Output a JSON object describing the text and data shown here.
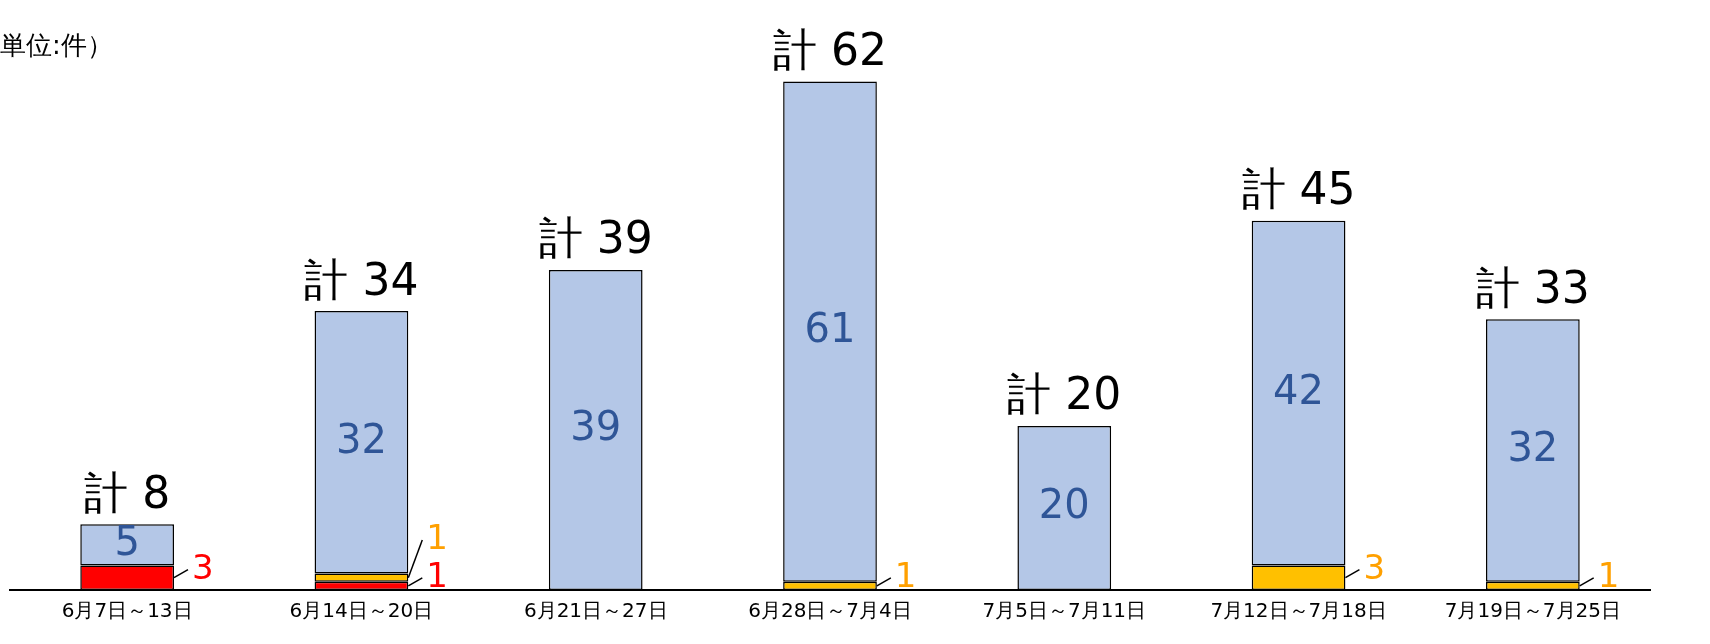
{
  "chart_data": {
    "type": "bar",
    "stacked": true,
    "data_labels": true,
    "annotations": [
      "単位:件）"
    ],
    "categories": [
      "6月7日～13日",
      "6月14日～20日",
      "6月21日～27日",
      "6月28日～7月4日",
      "7月5日～7月11日",
      "7月12日～7月18日",
      "7月19日～7月25日"
    ],
    "series": [
      {
        "color": "#ff0000",
        "values": [
          3,
          1,
          null,
          null,
          null,
          null,
          null
        ]
      },
      {
        "color": "#ffc000",
        "values": [
          null,
          1,
          null,
          1,
          null,
          3,
          1
        ]
      },
      {
        "color": "#b4c7e7",
        "values": [
          5,
          32,
          39,
          61,
          20,
          42,
          32
        ]
      }
    ],
    "totals": [
      "計 8",
      "計 34",
      "計 39",
      "計 62",
      "計 20",
      "計 45",
      "計 33"
    ],
    "legend": false,
    "grid": false
  }
}
